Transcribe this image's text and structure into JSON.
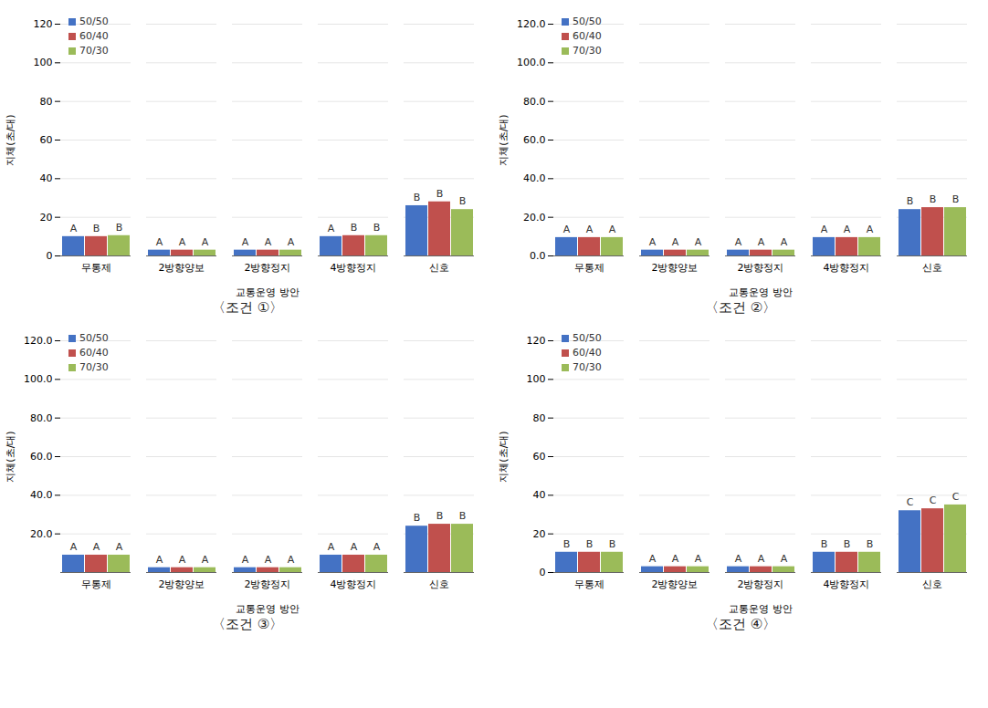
{
  "chart_data": [
    {
      "type": "bar",
      "title": "〈조건 ①〉",
      "x_label": "교통운영 방안",
      "y_label": "지체(초/대)",
      "categories": [
        "무통제",
        "2방향양보",
        "2방향정지",
        "4방향정지",
        "신호"
      ],
      "series": [
        {
          "name": "50/50",
          "color": "#4472c4",
          "values": [
            10,
            3,
            3,
            10,
            26
          ],
          "annotations": [
            "A",
            "A",
            "A",
            "A",
            "B"
          ]
        },
        {
          "name": "60/40",
          "color": "#c0504d",
          "values": [
            10,
            3,
            3,
            10.5,
            28
          ],
          "annotations": [
            "B",
            "A",
            "A",
            "B",
            "B"
          ]
        },
        {
          "name": "70/30",
          "color": "#9bbb59",
          "values": [
            10.5,
            3,
            3,
            10.5,
            24
          ],
          "annotations": [
            "B",
            "A",
            "A",
            "B",
            "B"
          ]
        }
      ],
      "ylim": [
        0,
        120
      ],
      "yticks": [
        0,
        20,
        40,
        60,
        80,
        100,
        120
      ],
      "grid": true,
      "legend": "upper left"
    },
    {
      "type": "bar",
      "title": "〈조건 ②〉",
      "x_label": "교통운영 방안",
      "y_label": "지체(초/대)",
      "categories": [
        "무통제",
        "2방향양보",
        "2방향정지",
        "4방향정지",
        "신호"
      ],
      "series": [
        {
          "name": "50/50",
          "color": "#4472c4",
          "values": [
            9.5,
            3,
            3,
            9.5,
            24
          ],
          "annotations": [
            "A",
            "A",
            "A",
            "A",
            "B"
          ]
        },
        {
          "name": "60/40",
          "color": "#c0504d",
          "values": [
            9.5,
            3,
            3,
            9.5,
            25
          ],
          "annotations": [
            "A",
            "A",
            "A",
            "A",
            "B"
          ]
        },
        {
          "name": "70/30",
          "color": "#9bbb59",
          "values": [
            9.5,
            3,
            3,
            9.5,
            25
          ],
          "annotations": [
            "A",
            "A",
            "A",
            "A",
            "B"
          ]
        }
      ],
      "ylim": [
        0,
        120
      ],
      "yticks": [
        {
          "value": 0,
          "label": "0.0"
        },
        {
          "value": 20,
          "label": "20.0"
        },
        {
          "value": 40,
          "label": "40.0"
        },
        {
          "value": 60,
          "label": "60.0"
        },
        {
          "value": 80,
          "label": "80.0"
        },
        {
          "value": 100,
          "label": "100.0"
        },
        {
          "value": 120,
          "label": "120.0"
        }
      ],
      "grid": true,
      "legend": "upper left"
    },
    {
      "type": "bar",
      "title": "〈조건 ③〉",
      "x_label": "교통운영 방안",
      "y_label": "지체(초/대)",
      "categories": [
        "무통제",
        "2방향양보",
        "2방향정지",
        "4방향정지",
        "신호"
      ],
      "series": [
        {
          "name": "50/50",
          "color": "#4472c4",
          "values": [
            9,
            2.5,
            2.5,
            9,
            24
          ],
          "annotations": [
            "A",
            "A",
            "A",
            "A",
            "B"
          ]
        },
        {
          "name": "60/40",
          "color": "#c0504d",
          "values": [
            9,
            2.5,
            2.5,
            9,
            25
          ],
          "annotations": [
            "A",
            "A",
            "A",
            "A",
            "B"
          ]
        },
        {
          "name": "70/30",
          "color": "#9bbb59",
          "values": [
            9,
            2.5,
            2.5,
            9,
            25
          ],
          "annotations": [
            "A",
            "A",
            "A",
            "A",
            "B"
          ]
        }
      ],
      "ylim": [
        0,
        120
      ],
      "yticks": [
        {
          "value": 20,
          "label": "20.0"
        },
        {
          "value": 40,
          "label": "40.0"
        },
        {
          "value": 60,
          "label": "60.0"
        },
        {
          "value": 80,
          "label": "80.0"
        },
        {
          "value": 100,
          "label": "100.0"
        },
        {
          "value": 120,
          "label": "120.0"
        }
      ],
      "grid": true,
      "legend": "upper left"
    },
    {
      "type": "bar",
      "title": "〈조건 ④〉",
      "x_label": "교통운영 방안",
      "y_label": "지체(초/대)",
      "categories": [
        "무통제",
        "2방향양보",
        "2방향정지",
        "4방향정지",
        "신호"
      ],
      "series": [
        {
          "name": "50/50",
          "color": "#4472c4",
          "values": [
            10.5,
            3,
            3,
            10.5,
            32
          ],
          "annotations": [
            "B",
            "A",
            "A",
            "B",
            "C"
          ]
        },
        {
          "name": "60/40",
          "color": "#c0504d",
          "values": [
            10.5,
            3,
            3,
            10.5,
            33
          ],
          "annotations": [
            "B",
            "A",
            "A",
            "B",
            "C"
          ]
        },
        {
          "name": "70/30",
          "color": "#9bbb59",
          "values": [
            10.5,
            3,
            3,
            10.5,
            35
          ],
          "annotations": [
            "B",
            "A",
            "A",
            "B",
            "C"
          ]
        }
      ],
      "ylim": [
        0,
        120
      ],
      "yticks": [
        0,
        20,
        40,
        60,
        80,
        100,
        120
      ],
      "grid": true,
      "legend": "upper left"
    }
  ]
}
